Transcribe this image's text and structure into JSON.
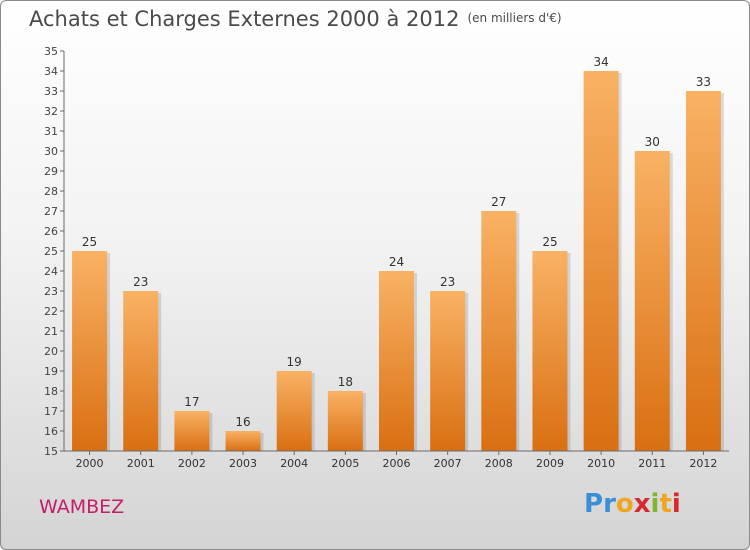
{
  "title": "Achats et Charges Externes 2000 à 2012",
  "subtitle": "(en milliers d'€)",
  "commune": "WAMBEZ",
  "logo": {
    "letters": [
      "P",
      "r",
      "o",
      "x",
      "i",
      "t",
      "i"
    ],
    "colors": [
      "#3a8fd6",
      "#3a8fd6",
      "#f0a51e",
      "#d6282e",
      "#7cb82f",
      "#f0a51e",
      "#d6282e"
    ]
  },
  "colors": {
    "bar": "#f08b2a",
    "bar_light": "#f9b264",
    "bar_dark": "#d96f12",
    "axis": "#6a6a6a",
    "grid": "#c8c8c8"
  },
  "chart_data": {
    "type": "bar",
    "categories": [
      "2000",
      "2001",
      "2002",
      "2003",
      "2004",
      "2005",
      "2006",
      "2007",
      "2008",
      "2009",
      "2010",
      "2011",
      "2012"
    ],
    "values": [
      25,
      23,
      17,
      16,
      19,
      18,
      24,
      23,
      27,
      25,
      34,
      30,
      33
    ],
    "ylim": [
      15,
      35
    ],
    "yticks": [
      15,
      16,
      17,
      18,
      19,
      20,
      21,
      22,
      23,
      24,
      25,
      26,
      27,
      28,
      29,
      30,
      31,
      32,
      33,
      34,
      35
    ],
    "grid": false
  }
}
